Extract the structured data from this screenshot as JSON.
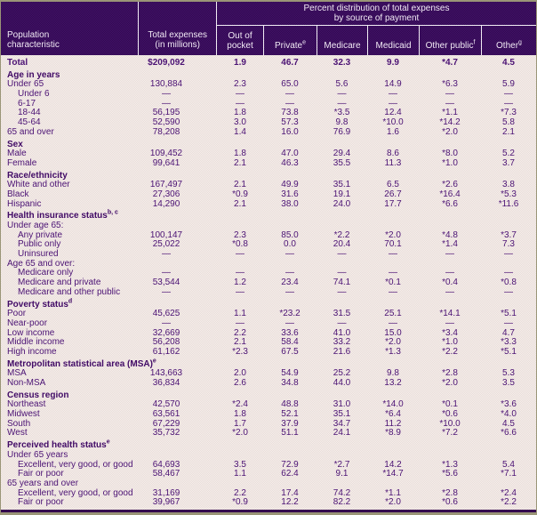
{
  "colors": {
    "header_bg": "#3a0d5c",
    "body_bg": "#ede3df",
    "body_text": "#4b1274",
    "header_text": "#f1e9f4",
    "separator_line": "#f2edf5",
    "outer_frame": "#9a9577",
    "bottom_rule": "#35094f"
  },
  "header": {
    "stub_line1": "Population",
    "stub_line2": "characteristic",
    "expenses_line1": "Total expenses",
    "expenses_line2": "(in millions)",
    "span_line1": "Percent distribution of total expenses",
    "span_line2": "by source of payment",
    "columns": [
      {
        "label": "Out of pocket",
        "sup": ""
      },
      {
        "label": "Private",
        "sup": "e"
      },
      {
        "label": "Medicare",
        "sup": ""
      },
      {
        "label": "Medicaid",
        "sup": ""
      },
      {
        "label": "Other public",
        "sup": "f"
      },
      {
        "label": "Other",
        "sup": "g"
      }
    ]
  },
  "rows": [
    {
      "type": "data",
      "bold": true,
      "label": "Total",
      "values": [
        "$209,092",
        "1.9",
        "46.7",
        "32.3",
        "9.9",
        "*4.7",
        "4.5"
      ]
    },
    {
      "type": "section",
      "label": "Age in years",
      "sup": ""
    },
    {
      "type": "data",
      "label": "Under 65",
      "values": [
        "130,884",
        "2.3",
        "65.0",
        "5.6",
        "14.9",
        "*6.3",
        "5.9"
      ]
    },
    {
      "type": "data",
      "indent": 1,
      "label": "Under 6",
      "values": [
        "—",
        "—",
        "—",
        "—",
        "—",
        "—",
        "—"
      ]
    },
    {
      "type": "data",
      "indent": 1,
      "label": "6-17",
      "values": [
        "—",
        "—",
        "—",
        "—",
        "—",
        "—",
        "—"
      ]
    },
    {
      "type": "data",
      "indent": 1,
      "label": "18-44",
      "values": [
        "56,195",
        "1.8",
        "73.8",
        "*3.5",
        "12.4",
        "*1.1",
        "*7.3"
      ]
    },
    {
      "type": "data",
      "indent": 1,
      "label": "45-64",
      "values": [
        "52,590",
        "3.0",
        "57.3",
        "9.8",
        "*10.0",
        "*14.2",
        "5.8"
      ]
    },
    {
      "type": "data",
      "label": "65 and over",
      "values": [
        "78,208",
        "1.4",
        "16.0",
        "76.9",
        "1.6",
        "*2.0",
        "2.1"
      ]
    },
    {
      "type": "section",
      "label": "Sex",
      "sup": ""
    },
    {
      "type": "data",
      "label": "Male",
      "values": [
        "109,452",
        "1.8",
        "47.0",
        "29.4",
        "8.6",
        "*8.0",
        "5.2"
      ]
    },
    {
      "type": "data",
      "label": "Female",
      "values": [
        "99,641",
        "2.1",
        "46.3",
        "35.5",
        "11.3",
        "*1.0",
        "3.7"
      ]
    },
    {
      "type": "section",
      "label": "Race/ethnicity",
      "sup": ""
    },
    {
      "type": "data",
      "label": "White and other",
      "values": [
        "167,497",
        "2.1",
        "49.9",
        "35.1",
        "6.5",
        "*2.6",
        "3.8"
      ]
    },
    {
      "type": "data",
      "label": "Black",
      "values": [
        "27,306",
        "*0.9",
        "31.6",
        "19.1",
        "26.7",
        "*16.4",
        "*5.3"
      ]
    },
    {
      "type": "data",
      "label": "Hispanic",
      "values": [
        "14,290",
        "2.1",
        "38.0",
        "24.0",
        "17.7",
        "*6.6",
        "*11.6"
      ]
    },
    {
      "type": "section",
      "label": "Health insurance status",
      "sup": "b, c"
    },
    {
      "type": "subheader",
      "label": "Under age 65:",
      "sup": ""
    },
    {
      "type": "data",
      "indent": 1,
      "label": "Any private",
      "values": [
        "100,147",
        "2.3",
        "85.0",
        "*2.2",
        "*2.0",
        "*4.8",
        "*3.7"
      ]
    },
    {
      "type": "data",
      "indent": 1,
      "label": "Public only",
      "values": [
        "25,022",
        "*0.8",
        "0.0",
        "20.4",
        "70.1",
        "*1.4",
        "7.3"
      ]
    },
    {
      "type": "data",
      "indent": 1,
      "label": "Uninsured",
      "values": [
        "—",
        "—",
        "—",
        "—",
        "—",
        "—",
        "—"
      ]
    },
    {
      "type": "subheader",
      "label": "Age 65 and over:",
      "sup": ""
    },
    {
      "type": "data",
      "indent": 1,
      "label": "Medicare only",
      "values": [
        "—",
        "—",
        "—",
        "—",
        "—",
        "—",
        "—"
      ]
    },
    {
      "type": "data",
      "indent": 1,
      "label": "Medicare and private",
      "values": [
        "53,544",
        "1.2",
        "23.4",
        "74.1",
        "*0.1",
        "*0.4",
        "*0.8"
      ]
    },
    {
      "type": "data",
      "indent": 1,
      "label": "Medicare and other public",
      "values": [
        "—",
        "—",
        "—",
        "—",
        "—",
        "—",
        "—"
      ]
    },
    {
      "type": "section",
      "label": "Poverty status",
      "sup": "d"
    },
    {
      "type": "data",
      "label": "Poor",
      "values": [
        "45,625",
        "1.1",
        "*23.2",
        "31.5",
        "25.1",
        "*14.1",
        "*5.1"
      ]
    },
    {
      "type": "data",
      "label": "Near-poor",
      "values": [
        "—",
        "—",
        "—",
        "—",
        "—",
        "—",
        "—"
      ]
    },
    {
      "type": "data",
      "label": "Low income",
      "values": [
        "32,669",
        "2.2",
        "33.6",
        "41.0",
        "15.0",
        "*3.4",
        "4.7"
      ]
    },
    {
      "type": "data",
      "label": "Middle income",
      "values": [
        "56,208",
        "2.1",
        "58.4",
        "33.2",
        "*2.0",
        "*1.0",
        "*3.3"
      ]
    },
    {
      "type": "data",
      "label": "High income",
      "values": [
        "61,162",
        "*2.3",
        "67.5",
        "21.6",
        "*1.3",
        "*2.2",
        "*5.1"
      ]
    },
    {
      "type": "section",
      "label": "Metropolitan statistical area (MSA)",
      "sup": "e"
    },
    {
      "type": "data",
      "label": "MSA",
      "values": [
        "143,663",
        "2.0",
        "54.9",
        "25.2",
        "9.8",
        "*2.8",
        "5.3"
      ]
    },
    {
      "type": "data",
      "label": "Non-MSA",
      "values": [
        "36,834",
        "2.6",
        "34.8",
        "44.0",
        "13.2",
        "*2.0",
        "3.5"
      ]
    },
    {
      "type": "section",
      "label": "Census region",
      "sup": ""
    },
    {
      "type": "data",
      "label": "Northeast",
      "values": [
        "42,570",
        "*2.4",
        "48.8",
        "31.0",
        "*14.0",
        "*0.1",
        "*3.6"
      ]
    },
    {
      "type": "data",
      "label": "Midwest",
      "values": [
        "63,561",
        "1.8",
        "52.1",
        "35.1",
        "*6.4",
        "*0.6",
        "*4.0"
      ]
    },
    {
      "type": "data",
      "label": "South",
      "values": [
        "67,229",
        "1.7",
        "37.9",
        "34.7",
        "11.2",
        "*10.0",
        "4.5"
      ]
    },
    {
      "type": "data",
      "label": "West",
      "values": [
        "35,732",
        "*2.0",
        "51.1",
        "24.1",
        "*8.9",
        "*7.2",
        "*6.6"
      ]
    },
    {
      "type": "section",
      "label": "Perceived health status",
      "sup": "e"
    },
    {
      "type": "subheader",
      "label": "Under 65 years",
      "sup": ""
    },
    {
      "type": "data",
      "indent": 1,
      "label": "Excellent, very good, or good",
      "values": [
        "64,693",
        "3.5",
        "72.9",
        "*2.7",
        "14.2",
        "*1.3",
        "5.4"
      ]
    },
    {
      "type": "data",
      "indent": 1,
      "label": "Fair or poor",
      "values": [
        "58,467",
        "1.1",
        "62.4",
        "9.1",
        "*14.7",
        "*5.6",
        "*7.1"
      ]
    },
    {
      "type": "subheader",
      "label": "65 years and over",
      "sup": ""
    },
    {
      "type": "data",
      "indent": 1,
      "label": "Excellent, very good, or good",
      "values": [
        "31,169",
        "2.2",
        "17.4",
        "74.2",
        "*1.1",
        "*2.8",
        "*2.4"
      ]
    },
    {
      "type": "data",
      "indent": 1,
      "label": "Fair or poor",
      "values": [
        "39,967",
        "*0.9",
        "12.2",
        "82.2",
        "*2.0",
        "*0.6",
        "*2.2"
      ]
    }
  ]
}
